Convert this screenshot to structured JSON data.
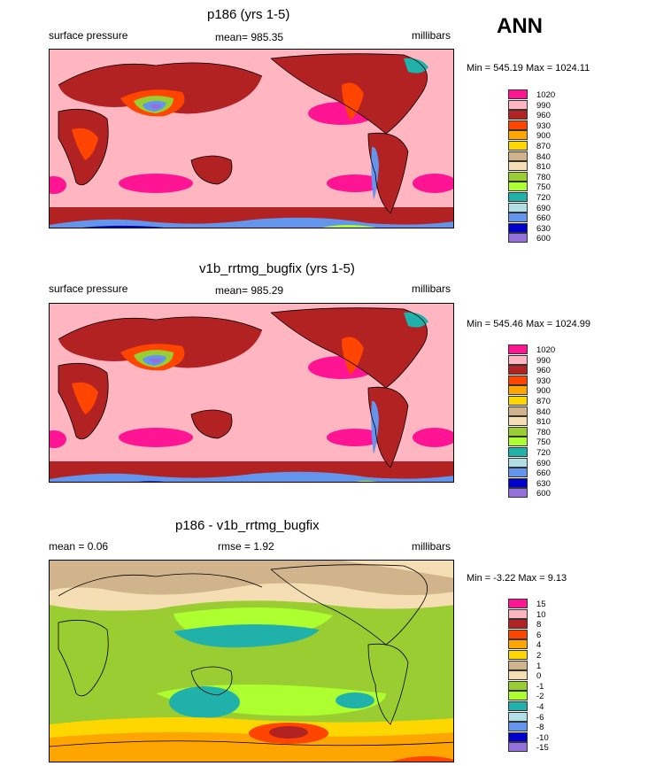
{
  "season": "ANN",
  "panels": [
    {
      "title": "p186 (yrs 1-5)",
      "left": "surface pressure",
      "center": "mean= 985.35",
      "right": "millibars",
      "minmax": "Min = 545.19 Max = 1024.11",
      "legend": [
        "1020",
        "990",
        "960",
        "930",
        "900",
        "870",
        "840",
        "810",
        "780",
        "750",
        "720",
        "690",
        "660",
        "630",
        "600"
      ],
      "colors": [
        "#ff1493",
        "#ffb6c1",
        "#b22222",
        "#ff4500",
        "#ffa500",
        "#ffd700",
        "#d2b48c",
        "#f5deb3",
        "#9acd32",
        "#adff2f",
        "#20b2aa",
        "#b0e0e6",
        "#6495ed",
        "#0000cd",
        "#9370db"
      ]
    },
    {
      "title": "v1b_rrtmg_bugfix (yrs 1-5)",
      "left": "surface pressure",
      "center": "mean= 985.29",
      "right": "millibars",
      "minmax": "Min = 545.46 Max = 1024.99",
      "legend": [
        "1020",
        "990",
        "960",
        "930",
        "900",
        "870",
        "840",
        "810",
        "780",
        "750",
        "720",
        "690",
        "660",
        "630",
        "600"
      ],
      "colors": [
        "#ff1493",
        "#ffb6c1",
        "#b22222",
        "#ff4500",
        "#ffa500",
        "#ffd700",
        "#d2b48c",
        "#f5deb3",
        "#9acd32",
        "#adff2f",
        "#20b2aa",
        "#b0e0e6",
        "#6495ed",
        "#0000cd",
        "#9370db"
      ]
    },
    {
      "title": "p186 - v1b_rrtmg_bugfix",
      "left": "mean =   0.06",
      "center": "rmse =   1.92",
      "right": "millibars",
      "minmax": "Min =  -3.22 Max =   9.13",
      "legend": [
        "15",
        "10",
        "8",
        "6",
        "4",
        "2",
        "1",
        "0",
        "-1",
        "-2",
        "-4",
        "-6",
        "-8",
        "-10",
        "-15"
      ],
      "colors": [
        "#ff1493",
        "#ffb6c1",
        "#b22222",
        "#ff4500",
        "#ffa500",
        "#ffd700",
        "#d2b48c",
        "#f5deb3",
        "#9acd32",
        "#adff2f",
        "#20b2aa",
        "#b0e0e6",
        "#6495ed",
        "#0000cd",
        "#9370db"
      ]
    }
  ]
}
